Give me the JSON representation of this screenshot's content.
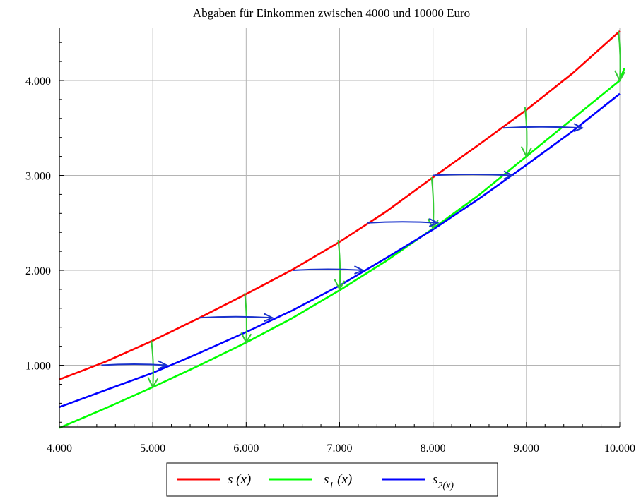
{
  "chart_data": {
    "type": "line",
    "title": "Abgaben für Einkommen zwischen 4000 und 10000 Euro",
    "xlabel": "",
    "ylabel": "",
    "xlim": [
      4000,
      10000
    ],
    "ylim": [
      350,
      4550
    ],
    "x_ticks": [
      4000,
      5000,
      6000,
      7000,
      8000,
      9000,
      10000
    ],
    "x_tick_labels": [
      "4.000",
      "5.000",
      "6.000",
      "7.000",
      "8.000",
      "9.000",
      "10.000"
    ],
    "y_ticks": [
      1000,
      2000,
      3000,
      4000
    ],
    "y_tick_labels": [
      "1.000",
      "2.000",
      "3.000",
      "4.000"
    ],
    "grid": true,
    "legend_position": "bottom-center",
    "series": [
      {
        "name": "s(x)",
        "legend": {
          "base": "s",
          "sub": "",
          "arg": "(x)"
        },
        "color": "#ff0000",
        "x": [
          4000,
          4500,
          5000,
          5500,
          6000,
          6500,
          7000,
          7500,
          8000,
          8500,
          9000,
          9500,
          10000
        ],
        "y": [
          850,
          1040,
          1260,
          1500,
          1750,
          2010,
          2300,
          2620,
          2980,
          3330,
          3690,
          4080,
          4520
        ]
      },
      {
        "name": "s1(x)",
        "legend": {
          "base": "s",
          "sub": "1",
          "arg": "(x)"
        },
        "color": "#00ff00",
        "x": [
          4000,
          4500,
          5000,
          5500,
          6000,
          6500,
          7000,
          7500,
          8000,
          8500,
          9000,
          9500,
          10000,
          10050
        ],
        "y": [
          340,
          550,
          770,
          1000,
          1240,
          1500,
          1790,
          2100,
          2440,
          2800,
          3200,
          3600,
          4000,
          4130
        ]
      },
      {
        "name": "s2(x)",
        "legend": {
          "base": "s",
          "sub": "2(x)",
          "arg": ""
        },
        "color": "#0000ff",
        "x": [
          4000,
          4500,
          5000,
          5500,
          6000,
          6500,
          7000,
          7500,
          8000,
          8500,
          9000,
          9500,
          10000
        ],
        "y": [
          560,
          740,
          920,
          1130,
          1350,
          1580,
          1840,
          2130,
          2430,
          2760,
          3110,
          3470,
          3860
        ]
      }
    ],
    "annotations": {
      "down_arrows": [
        {
          "x": 5000,
          "y_from": 1260,
          "y_to": 770
        },
        {
          "x": 6000,
          "y_from": 1760,
          "y_to": 1240
        },
        {
          "x": 7000,
          "y_from": 2320,
          "y_to": 1800
        },
        {
          "x": 8000,
          "y_from": 2980,
          "y_to": 2440
        },
        {
          "x": 9000,
          "y_from": 3720,
          "y_to": 3200
        },
        {
          "x": 10000,
          "y_from": 4520,
          "y_to": 4000
        }
      ],
      "right_arrows": [
        {
          "y": 1000,
          "x_from": 4450,
          "x_to": 5150
        },
        {
          "y": 1500,
          "x_from": 5500,
          "x_to": 6280
        },
        {
          "y": 2000,
          "x_from": 6500,
          "x_to": 7250
        },
        {
          "y": 2500,
          "x_from": 7300,
          "x_to": 8050
        },
        {
          "y": 3000,
          "x_from": 8000,
          "x_to": 8850
        },
        {
          "y": 3500,
          "x_from": 8750,
          "x_to": 9600
        }
      ],
      "down_arrow_color": "#33cc33",
      "right_arrow_color": "#1a33cc"
    }
  }
}
